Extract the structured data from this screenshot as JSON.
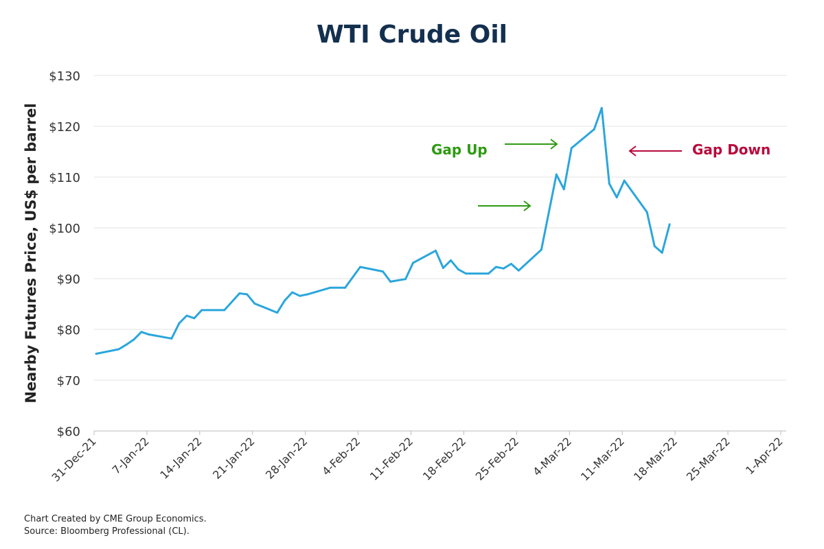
{
  "chart_data": {
    "type": "line",
    "title": "WTI Crude Oil",
    "ylabel": "Nearby Futures Price, US$ per barrel",
    "xlabel": "",
    "ylim": [
      60,
      130
    ],
    "yticks": [
      "$60",
      "$70",
      "$80",
      "$90",
      "$100",
      "$110",
      "$120",
      "$130"
    ],
    "ytick_values": [
      60,
      70,
      80,
      90,
      100,
      110,
      120,
      130
    ],
    "xlim": [
      "2021-12-31",
      "2022-04-01"
    ],
    "xticks": [
      "31-Dec-21",
      "7-Jan-22",
      "14-Jan-22",
      "21-Jan-22",
      "28-Jan-22",
      "4-Feb-22",
      "11-Feb-22",
      "18-Feb-22",
      "25-Feb-22",
      "4-Mar-22",
      "11-Mar-22",
      "18-Mar-22",
      "25-Mar-22",
      "1-Apr-22"
    ],
    "grid": "horizontal",
    "line_color": "#2aa6dc",
    "series": [
      {
        "x": [
          "2021-12-31",
          "2022-01-03",
          "2022-01-04",
          "2022-01-05",
          "2022-01-06",
          "2022-01-07",
          "2022-01-10",
          "2022-01-11",
          "2022-01-12",
          "2022-01-13",
          "2022-01-14",
          "2022-01-17",
          "2022-01-19",
          "2022-01-20",
          "2022-01-21",
          "2022-01-24",
          "2022-01-25",
          "2022-01-26",
          "2022-01-27",
          "2022-01-28",
          "2022-01-31",
          "2022-02-02",
          "2022-02-04",
          "2022-02-07",
          "2022-02-08",
          "2022-02-10",
          "2022-02-11",
          "2022-02-14",
          "2022-02-15",
          "2022-02-16",
          "2022-02-17",
          "2022-02-18",
          "2022-02-21",
          "2022-02-22",
          "2022-02-23",
          "2022-02-24",
          "2022-02-25",
          "2022-02-28",
          "2022-03-02",
          "2022-03-03",
          "2022-03-04",
          "2022-03-07",
          "2022-03-08",
          "2022-03-09",
          "2022-03-10",
          "2022-03-11",
          "2022-03-14",
          "2022-03-15",
          "2022-03-16",
          "2022-03-17"
        ],
        "y": [
          75.2,
          76.1,
          77.0,
          78.0,
          79.5,
          79.0,
          78.2,
          81.2,
          82.7,
          82.2,
          83.8,
          83.8,
          87.1,
          86.9,
          85.1,
          83.3,
          85.7,
          87.3,
          86.6,
          86.9,
          88.2,
          88.2,
          92.3,
          91.4,
          89.4,
          89.9,
          93.1,
          95.5,
          92.1,
          93.6,
          91.8,
          91.0,
          91.0,
          92.3,
          92.0,
          92.9,
          91.6,
          95.7,
          110.5,
          107.6,
          115.7,
          119.4,
          123.6,
          108.7,
          106.0,
          109.3,
          103.1,
          96.4,
          95.1,
          100.7
        ]
      }
    ],
    "annotations": [
      {
        "text": "Gap Up",
        "color": "#2e9a12",
        "arrow": "right",
        "arrow_count": 2
      },
      {
        "text": "Gap Down",
        "color": "#b80a3c",
        "arrow": "left",
        "arrow_count": 1
      }
    ]
  },
  "footer": {
    "line1": "Chart Created by CME Group Economics.",
    "line2": "Source:  Bloomberg Professional (CL)."
  }
}
